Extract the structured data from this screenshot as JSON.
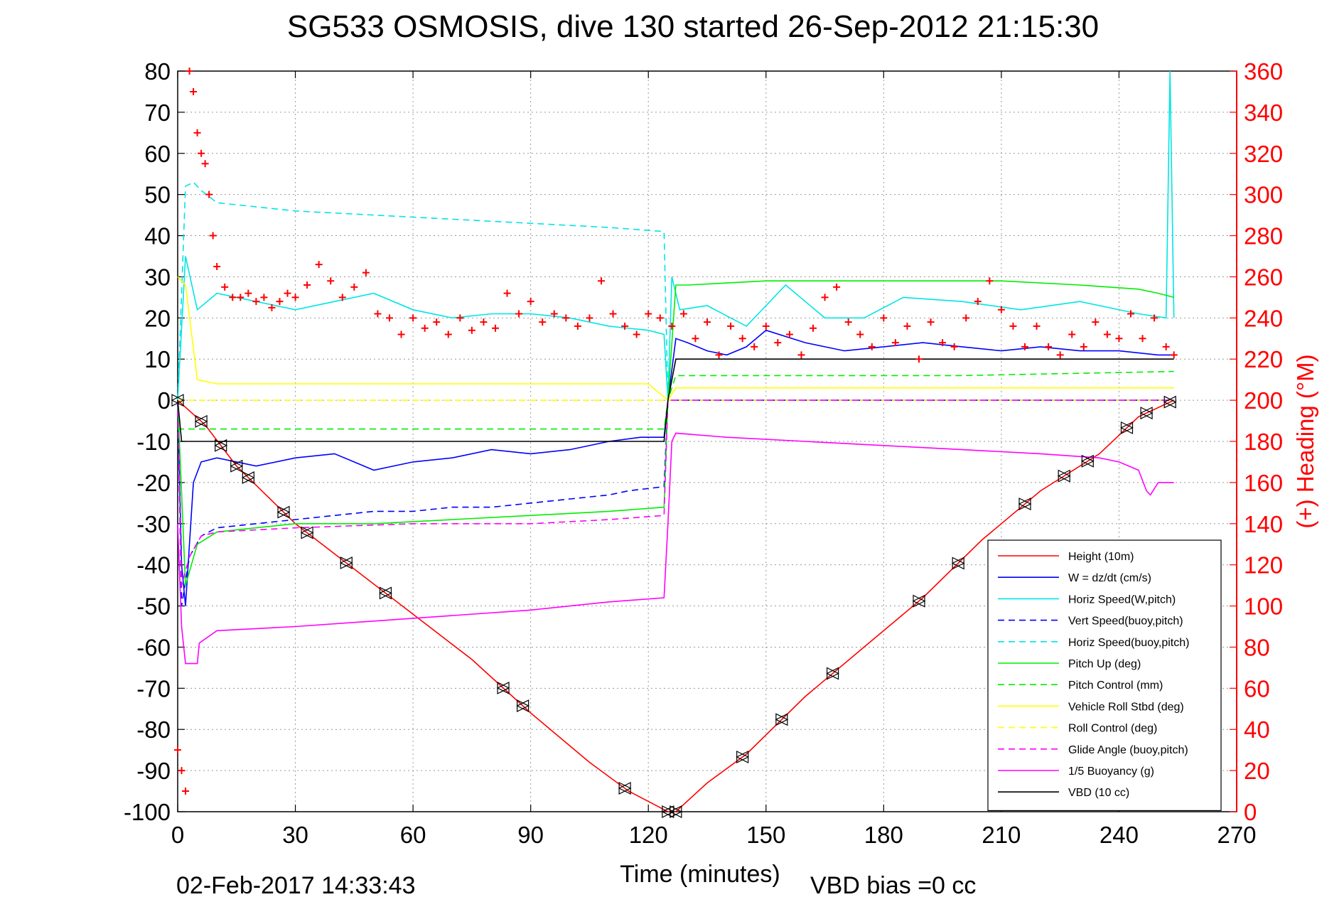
{
  "chart_data": {
    "type": "line",
    "title": "SG533 OSMOSIS, dive 130 started 26-Sep-2012 21:15:30",
    "xlabel": "Time (minutes)",
    "ylabel": "",
    "y2label": "(+) Heading (°M)",
    "footer_date": "02-Feb-2017 14:33:43",
    "footer_bias": "VBD bias =0 cc",
    "xlim": [
      0,
      270
    ],
    "ylim": [
      -100,
      80
    ],
    "y2lim": [
      0,
      360
    ],
    "xticks": [
      0,
      30,
      60,
      90,
      120,
      150,
      180,
      210,
      240,
      270
    ],
    "yticks": [
      80,
      70,
      60,
      50,
      40,
      30,
      20,
      10,
      0,
      -10,
      -20,
      -30,
      -40,
      -50,
      -60,
      -70,
      -80,
      -90,
      -100
    ],
    "y2ticks": [
      360,
      340,
      320,
      300,
      280,
      260,
      240,
      220,
      200,
      180,
      160,
      140,
      120,
      100,
      80,
      60,
      40,
      20,
      0
    ],
    "grid": true,
    "legend_position": "bottom-right",
    "series": [
      {
        "name": "Height (10m)",
        "color": "#ff0000",
        "style": "solid",
        "x": [
          0,
          7,
          15,
          30,
          45,
          60,
          75,
          90,
          105,
          115,
          125,
          127,
          135,
          145,
          160,
          175,
          190,
          205,
          220,
          235,
          245,
          254
        ],
        "y": [
          0,
          -6,
          -16,
          -30,
          -41,
          -52,
          -63,
          -76,
          -88,
          -95,
          -100,
          -100,
          -93,
          -86,
          -72,
          -60,
          -48,
          -34,
          -22,
          -13,
          -4,
          0
        ]
      },
      {
        "name": "W = dz/dt (cm/s)",
        "color": "#0000ff",
        "style": "solid",
        "x": [
          0,
          1,
          2,
          4,
          6,
          10,
          20,
          30,
          40,
          50,
          60,
          70,
          80,
          90,
          100,
          110,
          118,
          124,
          125,
          127,
          130,
          135,
          140,
          145,
          150,
          160,
          170,
          180,
          190,
          200,
          210,
          220,
          230,
          240,
          250,
          254
        ],
        "y": [
          0,
          -40,
          -50,
          -20,
          -15,
          -14,
          -16,
          -14,
          -13,
          -17,
          -15,
          -14,
          -12,
          -13,
          -12,
          -10,
          -9,
          -9,
          0,
          15,
          14,
          12,
          11,
          13,
          17,
          14,
          12,
          13,
          14,
          13,
          12,
          13,
          12,
          12,
          11,
          11
        ]
      },
      {
        "name": "Horiz Speed(W,pitch)",
        "color": "#00e5e5",
        "style": "solid",
        "x": [
          0,
          2,
          5,
          10,
          20,
          30,
          40,
          50,
          60,
          70,
          80,
          90,
          100,
          110,
          120,
          124,
          125,
          126,
          128,
          135,
          145,
          155,
          165,
          175,
          185,
          200,
          215,
          230,
          245,
          252,
          253,
          254
        ],
        "y": [
          0,
          35,
          22,
          26,
          24,
          22,
          24,
          26,
          22,
          20,
          21,
          21,
          20,
          18,
          17,
          16,
          0,
          30,
          22,
          23,
          18,
          28,
          20,
          20,
          25,
          24,
          22,
          24,
          21,
          20,
          80,
          20
        ]
      },
      {
        "name": "Vert Speed(buoy,pitch)",
        "color": "#0000ff",
        "style": "dashed",
        "x": [
          0,
          1,
          3,
          6,
          10,
          20,
          30,
          40,
          50,
          60,
          70,
          80,
          90,
          100,
          110,
          115,
          124,
          125,
          127,
          254
        ],
        "y": [
          0,
          -50,
          -38,
          -33,
          -31,
          -30,
          -29,
          -28,
          -27,
          -27,
          -26,
          -26,
          -25,
          -24,
          -23,
          -22,
          -21,
          0,
          0,
          0
        ]
      },
      {
        "name": "Horiz Speed(buoy,pitch)",
        "color": "#00e5e5",
        "style": "dashed",
        "x": [
          0,
          2,
          4,
          6,
          10,
          30,
          50,
          70,
          90,
          110,
          124,
          125,
          127,
          254
        ],
        "y": [
          0,
          52,
          53,
          51,
          48,
          46,
          45,
          44,
          43,
          42,
          41,
          0,
          0,
          0
        ]
      },
      {
        "name": "Pitch Up (deg)",
        "color": "#00ee00",
        "style": "solid",
        "x": [
          0,
          2,
          5,
          10,
          20,
          30,
          50,
          70,
          90,
          110,
          124,
          125,
          127,
          130,
          150,
          170,
          190,
          210,
          230,
          245,
          250,
          254
        ],
        "y": [
          0,
          -45,
          -35,
          -32,
          -31,
          -30,
          -30,
          -29,
          -28,
          -27,
          -26,
          0,
          28,
          28,
          29,
          29,
          29,
          29,
          28,
          27,
          26,
          25
        ]
      },
      {
        "name": "Pitch Control (mm)",
        "color": "#00ee00",
        "style": "dashed",
        "x": [
          0,
          3,
          20,
          60,
          100,
          124,
          125,
          127,
          150,
          200,
          254
        ],
        "y": [
          -7,
          -7,
          -7,
          -7,
          -7,
          -7,
          0,
          6,
          6,
          6,
          7
        ]
      },
      {
        "name": "Vehicle Roll Stbd (deg)",
        "color": "#ffff00",
        "style": "solid",
        "x": [
          0,
          2,
          5,
          10,
          30,
          60,
          90,
          120,
          125,
          127,
          160,
          200,
          240,
          254
        ],
        "y": [
          30,
          28,
          5,
          4,
          4,
          4,
          4,
          4,
          0,
          3,
          3,
          3,
          3,
          3
        ]
      },
      {
        "name": "Roll Control (deg)",
        "color": "#ffff00",
        "style": "dashed",
        "x": [
          0,
          254
        ],
        "y": [
          0,
          0
        ]
      },
      {
        "name": "Glide Angle (buoy,pitch)",
        "color": "#ff00ff",
        "style": "dashed",
        "x": [
          0,
          1,
          3,
          6,
          10,
          30,
          60,
          90,
          110,
          124,
          125,
          127,
          254
        ],
        "y": [
          0,
          -45,
          -38,
          -33,
          -32,
          -31,
          -30,
          -30,
          -29,
          -28,
          0,
          0,
          0
        ]
      },
      {
        "name": "1/5 Buoyancy (g)",
        "color": "#ff00ff",
        "style": "solid",
        "x": [
          0,
          1,
          2,
          5,
          5.5,
          10,
          30,
          60,
          90,
          110,
          124,
          125,
          126,
          127,
          140,
          160,
          180,
          200,
          220,
          235,
          240,
          245,
          247,
          248,
          250,
          254
        ],
        "y": [
          -30,
          -55,
          -64,
          -64,
          -59,
          -56,
          -55,
          -53,
          -51,
          -49,
          -48,
          -30,
          -10,
          -8,
          -9,
          -10,
          -11,
          -12,
          -13,
          -14,
          -15,
          -17,
          -22,
          -23,
          -20,
          -20
        ]
      },
      {
        "name": "VBD (10 cc)",
        "color": "#000000",
        "style": "solid",
        "x": [
          0,
          1,
          5,
          124,
          125,
          127,
          128,
          254
        ],
        "y": [
          0,
          -10,
          -10,
          -10,
          0,
          10,
          10,
          10
        ]
      }
    ],
    "heading": {
      "color": "#ff0000",
      "marker": "+",
      "axis": "right",
      "x": [
        0,
        1,
        2,
        3,
        4,
        5,
        6,
        7,
        8,
        9,
        10,
        12,
        14,
        16,
        18,
        20,
        22,
        24,
        26,
        28,
        30,
        33,
        36,
        39,
        42,
        45,
        48,
        51,
        54,
        57,
        60,
        63,
        66,
        69,
        72,
        75,
        78,
        81,
        84,
        87,
        90,
        93,
        96,
        99,
        102,
        105,
        108,
        111,
        114,
        117,
        120,
        123,
        126,
        129,
        132,
        135,
        138,
        141,
        144,
        147,
        150,
        153,
        156,
        159,
        162,
        165,
        168,
        171,
        174,
        177,
        180,
        183,
        186,
        189,
        192,
        195,
        198,
        201,
        204,
        207,
        210,
        213,
        216,
        219,
        222,
        225,
        228,
        231,
        234,
        237,
        240,
        243,
        246,
        249,
        252,
        254
      ],
      "y": [
        30,
        20,
        10,
        360,
        350,
        330,
        320,
        315,
        300,
        280,
        265,
        255,
        250,
        250,
        252,
        248,
        250,
        245,
        248,
        252,
        250,
        256,
        266,
        258,
        250,
        255,
        262,
        242,
        240,
        232,
        240,
        235,
        238,
        232,
        240,
        234,
        238,
        235,
        252,
        242,
        248,
        238,
        242,
        240,
        236,
        240,
        258,
        242,
        236,
        232,
        242,
        240,
        236,
        242,
        230,
        238,
        222,
        236,
        230,
        226,
        236,
        228,
        232,
        222,
        235,
        250,
        255,
        238,
        232,
        226,
        240,
        228,
        236,
        220,
        238,
        228,
        226,
        240,
        248,
        258,
        244,
        236,
        226,
        236,
        226,
        222,
        232,
        226,
        238,
        232,
        230,
        242,
        230,
        240,
        226,
        222
      ]
    }
  }
}
